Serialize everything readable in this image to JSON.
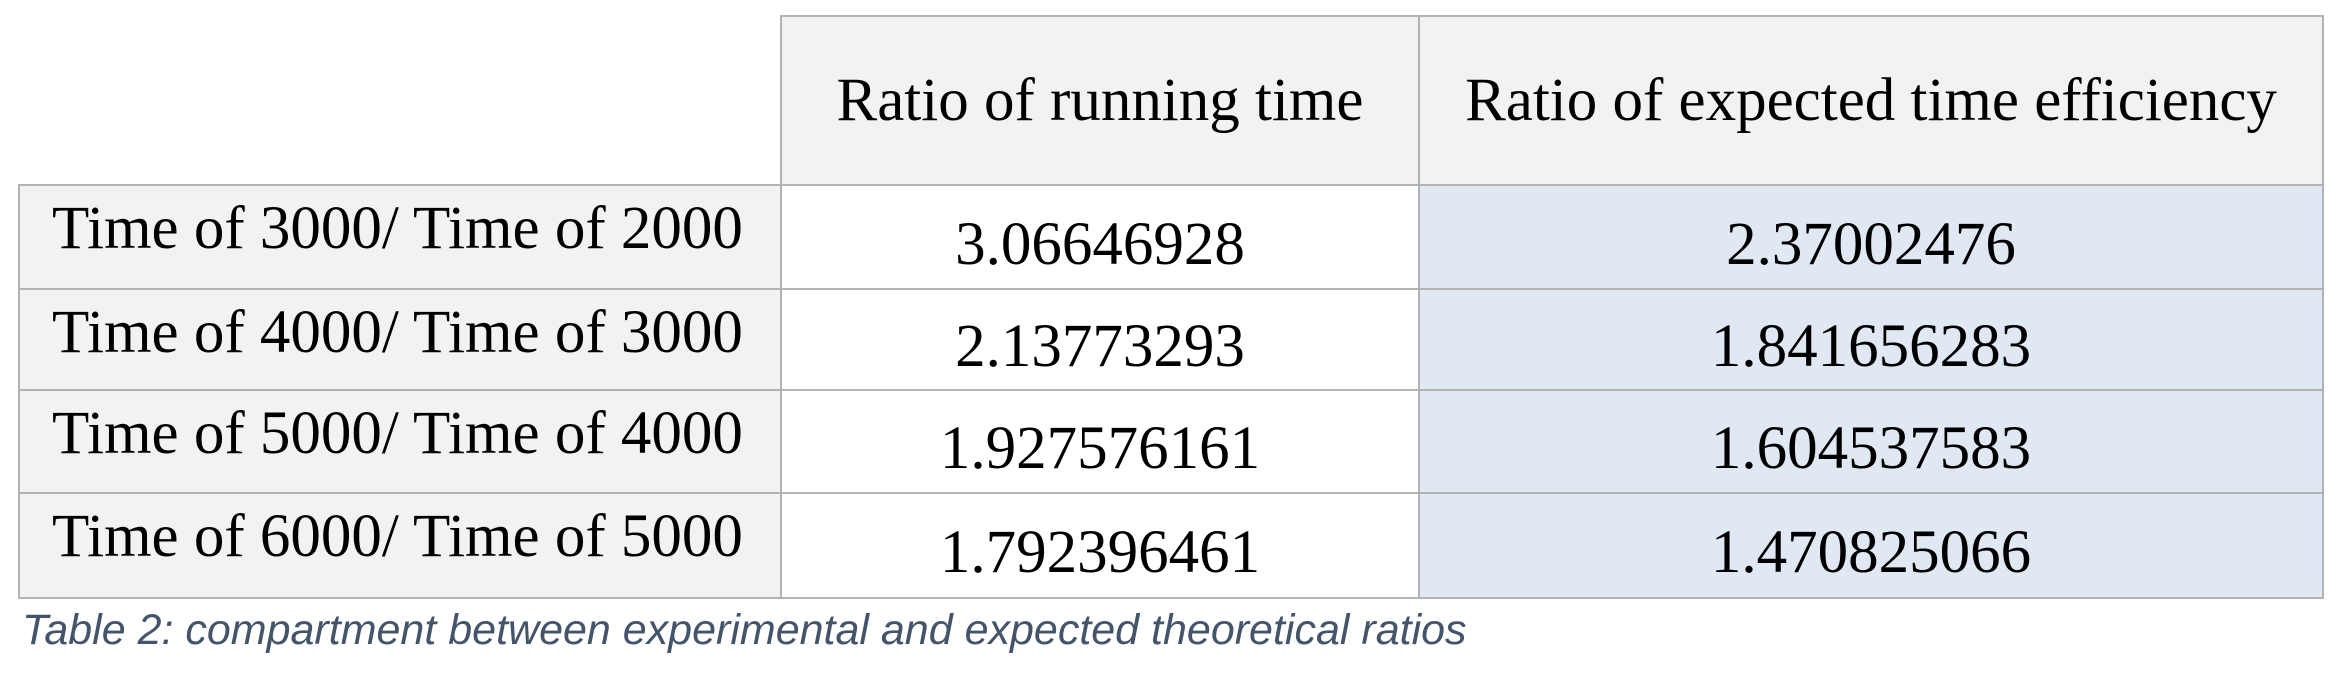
{
  "table": {
    "headers": [
      "Ratio of running time",
      "Ratio of expected time efficiency"
    ],
    "rows": [
      {
        "label": "Time of 3000/ Time of 2000",
        "running": "3.06646928",
        "expected": "2.37002476"
      },
      {
        "label": "Time of 4000/ Time of 3000",
        "running": "2.13773293",
        "expected": "1.841656283"
      },
      {
        "label": "Time of 5000/ Time of 4000",
        "running": "1.927576161",
        "expected": "1.604537583"
      },
      {
        "label": "Time of 6000/ Time of 5000",
        "running": "1.792396461",
        "expected": "1.470825066"
      }
    ],
    "colors": {
      "header_bg": "#f2f2f2",
      "expected_bg": "#dfe8f3",
      "border": "#b3b3b3",
      "caption": "#44546a"
    }
  },
  "caption": "Table 2: compartment between experimental and expected theoretical ratios"
}
